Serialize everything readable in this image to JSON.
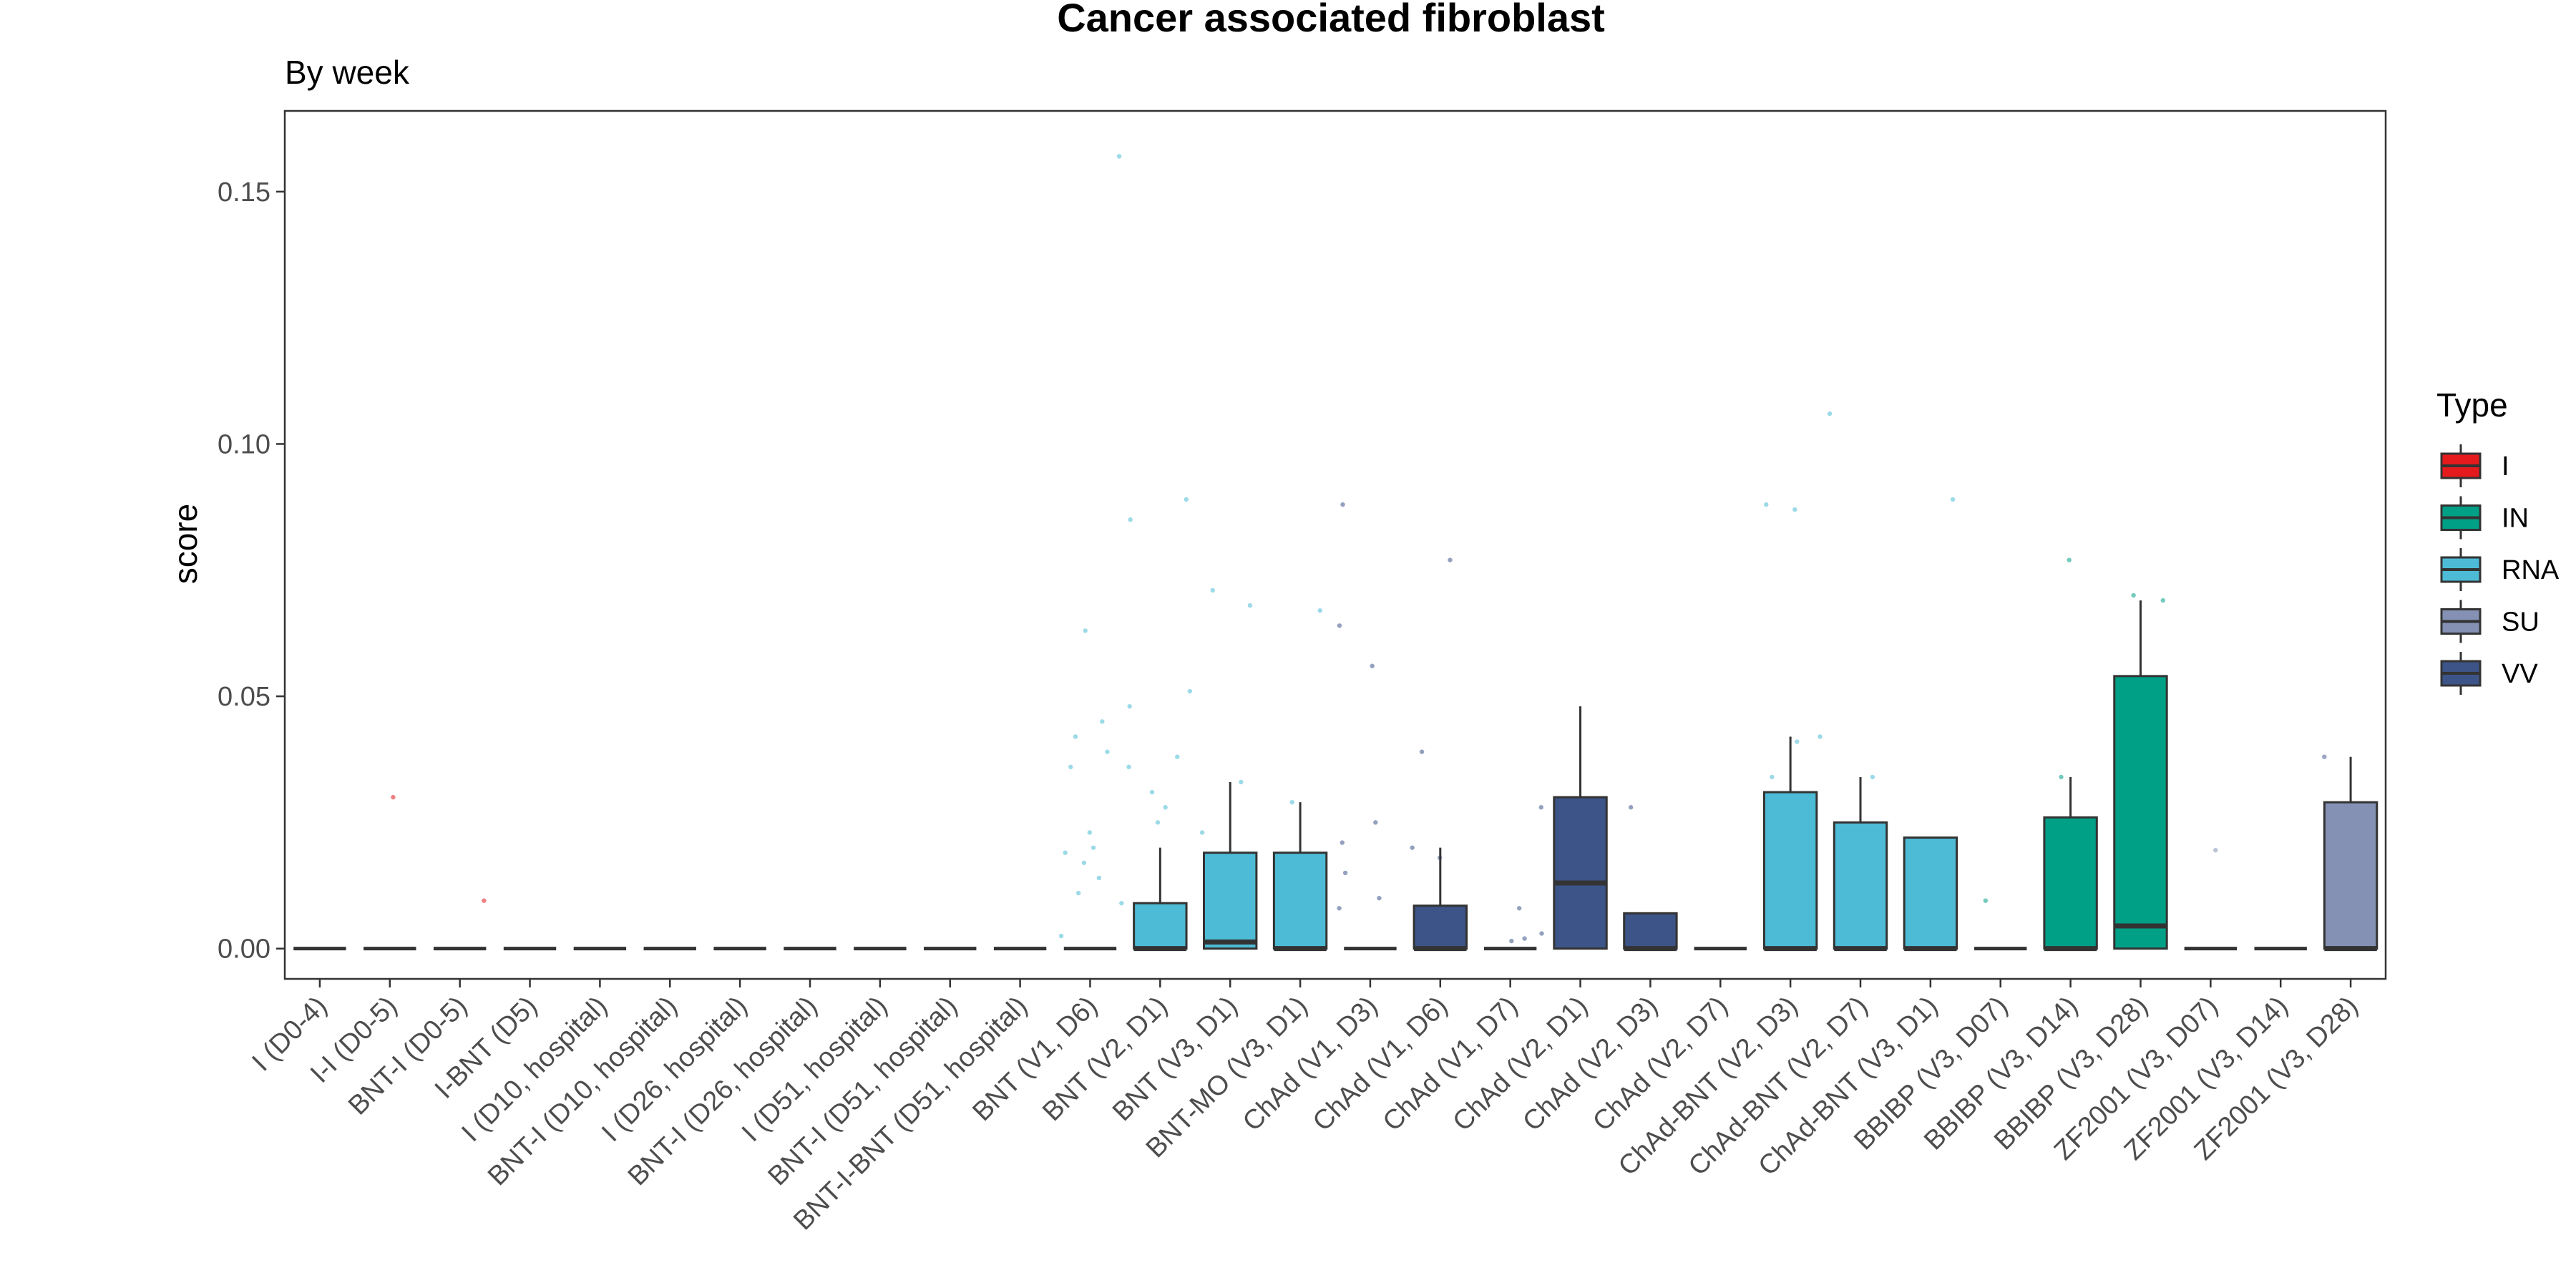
{
  "chart_data": {
    "type": "box",
    "title": "Cancer associated fibroblast",
    "subtitle": "By week",
    "xlabel": "",
    "ylabel": "score",
    "ylim": [
      -0.006,
      0.166
    ],
    "yticks": [
      0.0,
      0.05,
      0.1,
      0.15
    ],
    "ytick_labels": [
      "0.00",
      "0.05",
      "0.10",
      "0.15"
    ],
    "grid": false,
    "legend": {
      "title": "Type",
      "position": "right",
      "entries": [
        {
          "name": "I",
          "color": "#e41a1c"
        },
        {
          "name": "IN",
          "color": "#00a087"
        },
        {
          "name": "RNA",
          "color": "#4dbbd5"
        },
        {
          "name": "SU",
          "color": "#8491b4"
        },
        {
          "name": "VV",
          "color": "#3c5488"
        }
      ]
    },
    "categories": [
      {
        "label": "I (D0-4)",
        "type": "I",
        "q1": 0,
        "median": 0,
        "q3": 0,
        "whisker_high": 0,
        "outliers": []
      },
      {
        "label": "I-I (D0-5)",
        "type": "I",
        "q1": 0,
        "median": 0,
        "q3": 0,
        "whisker_high": 0,
        "outliers": [
          0.03
        ]
      },
      {
        "label": "BNT-I (D0-5)",
        "type": "I",
        "q1": 0,
        "median": 0,
        "q3": 0,
        "whisker_high": 0,
        "outliers": [
          0.0095
        ]
      },
      {
        "label": "I-BNT (D5)",
        "type": "I",
        "q1": 0,
        "median": 0,
        "q3": 0,
        "whisker_high": 0,
        "outliers": []
      },
      {
        "label": "I (D10, hospital)",
        "type": "I",
        "q1": 0,
        "median": 0,
        "q3": 0,
        "whisker_high": 0,
        "outliers": []
      },
      {
        "label": "BNT-I (D10, hospital)",
        "type": "I",
        "q1": 0,
        "median": 0,
        "q3": 0,
        "whisker_high": 0,
        "outliers": []
      },
      {
        "label": "I (D26, hospital)",
        "type": "I",
        "q1": 0,
        "median": 0,
        "q3": 0,
        "whisker_high": 0,
        "outliers": []
      },
      {
        "label": "BNT-I (D26, hospital)",
        "type": "I",
        "q1": 0,
        "median": 0,
        "q3": 0,
        "whisker_high": 0,
        "outliers": []
      },
      {
        "label": "I (D51, hospital)",
        "type": "I",
        "q1": 0,
        "median": 0,
        "q3": 0,
        "whisker_high": 0,
        "outliers": []
      },
      {
        "label": "BNT-I (D51, hospital)",
        "type": "I",
        "q1": 0,
        "median": 0,
        "q3": 0,
        "whisker_high": 0,
        "outliers": []
      },
      {
        "label": "BNT-I-BNT (D51, hospital)",
        "type": "I",
        "q1": 0,
        "median": 0,
        "q3": 0,
        "whisker_high": 0,
        "outliers": []
      },
      {
        "label": "BNT (V1, D6)",
        "type": "RNA",
        "q1": 0,
        "median": 0,
        "q3": 0,
        "whisker_high": 0,
        "outliers": [
          0.157,
          0.063,
          0.045,
          0.042,
          0.039,
          0.036,
          0.023,
          0.02,
          0.019,
          0.017,
          0.014,
          0.011,
          0.009,
          0.0025
        ]
      },
      {
        "label": "BNT (V2, D1)",
        "type": "RNA",
        "q1": 0,
        "median": 0,
        "q3": 0.009,
        "whisker_high": 0.02,
        "outliers": [
          0.089,
          0.085,
          0.051,
          0.048,
          0.038,
          0.036,
          0.031,
          0.028,
          0.025
        ]
      },
      {
        "label": "BNT (V3, D1)",
        "type": "RNA",
        "q1": 0,
        "median": 0.0013,
        "q3": 0.019,
        "whisker_high": 0.033,
        "outliers": [
          0.071,
          0.068,
          0.033,
          0.023
        ]
      },
      {
        "label": "BNT-MO (V3, D1)",
        "type": "RNA",
        "q1": 0,
        "median": 0,
        "q3": 0.019,
        "whisker_high": 0.029,
        "outliers": [
          0.067,
          0.029
        ]
      },
      {
        "label": "ChAd (V1, D3)",
        "type": "VV",
        "q1": 0,
        "median": 0,
        "q3": 0,
        "whisker_high": 0,
        "outliers": [
          0.088,
          0.064,
          0.056,
          0.025,
          0.021,
          0.015,
          0.01,
          0.008
        ]
      },
      {
        "label": "ChAd (V1, D6)",
        "type": "VV",
        "q1": 0,
        "median": 0,
        "q3": 0.0085,
        "whisker_high": 0.02,
        "outliers": [
          0.077,
          0.039,
          0.02,
          0.018
        ]
      },
      {
        "label": "ChAd (V1, D7)",
        "type": "VV",
        "q1": 0,
        "median": 0,
        "q3": 0,
        "whisker_high": 0,
        "outliers": [
          0.028,
          0.008,
          0.003,
          0.002,
          0.0015
        ]
      },
      {
        "label": "ChAd (V2, D1)",
        "type": "VV",
        "q1": 0,
        "median": 0.013,
        "q3": 0.03,
        "whisker_high": 0.048,
        "outliers": []
      },
      {
        "label": "ChAd (V2, D3)",
        "type": "VV",
        "q1": 0,
        "median": 0,
        "q3": 0.007,
        "whisker_high": 0.007,
        "outliers": [
          0.028
        ]
      },
      {
        "label": "ChAd (V2, D7)",
        "type": "VV",
        "q1": 0,
        "median": 0,
        "q3": 0,
        "whisker_high": 0,
        "outliers": []
      },
      {
        "label": "ChAd-BNT (V2, D3)",
        "type": "RNA",
        "q1": 0,
        "median": 0,
        "q3": 0.031,
        "whisker_high": 0.042,
        "outliers": [
          0.088,
          0.087,
          0.042,
          0.041,
          0.034
        ]
      },
      {
        "label": "ChAd-BNT (V2, D7)",
        "type": "RNA",
        "q1": 0,
        "median": 0,
        "q3": 0.025,
        "whisker_high": 0.034,
        "outliers": [
          0.106,
          0.034
        ]
      },
      {
        "label": "ChAd-BNT (V3, D1)",
        "type": "RNA",
        "q1": 0,
        "median": 0,
        "q3": 0.022,
        "whisker_high": 0.022,
        "outliers": [
          0.089
        ]
      },
      {
        "label": "BBIBP (V3, D07)",
        "type": "IN",
        "q1": 0,
        "median": 0,
        "q3": 0,
        "whisker_high": 0,
        "outliers": [
          0.0095
        ]
      },
      {
        "label": "BBIBP (V3, D14)",
        "type": "IN",
        "q1": 0,
        "median": 0,
        "q3": 0.026,
        "whisker_high": 0.034,
        "outliers": [
          0.077,
          0.034
        ]
      },
      {
        "label": "BBIBP (V3, D28)",
        "type": "IN",
        "q1": 0,
        "median": 0.0045,
        "q3": 0.054,
        "whisker_high": 0.069,
        "outliers": [
          0.07,
          0.069
        ]
      },
      {
        "label": "ZF2001 (V3, D07)",
        "type": "SU",
        "q1": 0,
        "median": 0,
        "q3": 0,
        "whisker_high": 0,
        "outliers": [
          0.0195
        ]
      },
      {
        "label": "ZF2001 (V3, D14)",
        "type": "SU",
        "q1": 0,
        "median": 0,
        "q3": 0,
        "whisker_high": 0,
        "outliers": []
      },
      {
        "label": "ZF2001 (V3, D28)",
        "type": "SU",
        "q1": 0,
        "median": 0,
        "q3": 0.029,
        "whisker_high": 0.038,
        "outliers": [
          0.038,
          0.038
        ]
      }
    ]
  }
}
